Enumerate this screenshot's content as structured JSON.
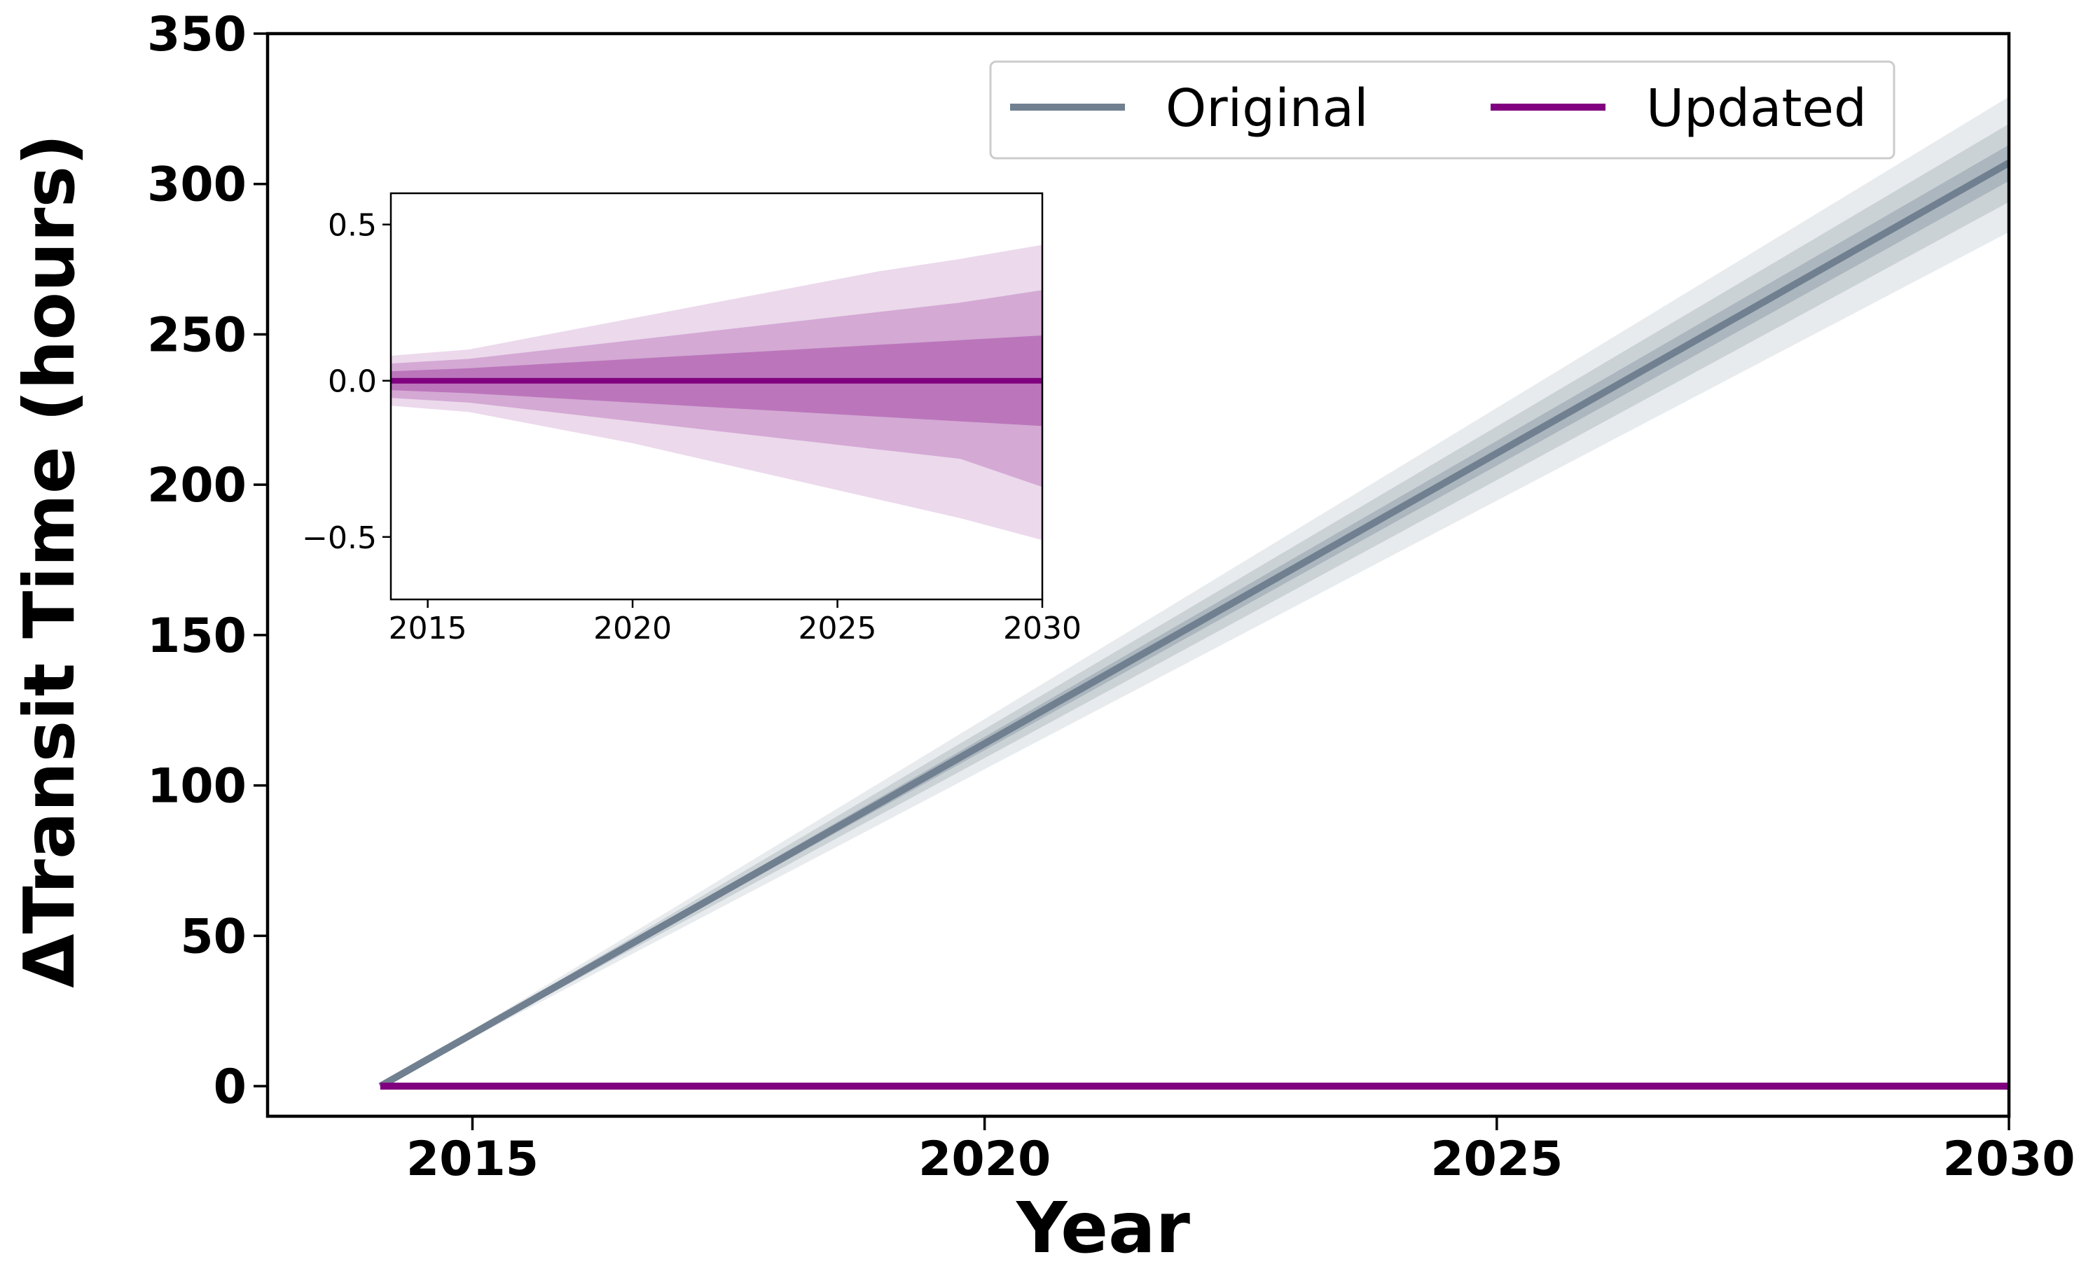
{
  "chart_data": [
    {
      "type": "line",
      "role": "main",
      "title": "",
      "xlabel": "Year",
      "ylabel": "ΔTransit Time (hours)",
      "xlim": [
        2013,
        2030
      ],
      "ylim": [
        -10,
        350
      ],
      "xticks": [
        2015,
        2020,
        2025,
        2030
      ],
      "xtick_labels": [
        "2015",
        "2020",
        "2025",
        "2030"
      ],
      "yticks": [
        0,
        50,
        100,
        150,
        200,
        250,
        300,
        350
      ],
      "ytick_labels": [
        "0",
        "50",
        "100",
        "150",
        "200",
        "250",
        "300",
        "350"
      ],
      "grid": false,
      "legend": {
        "placement": "upper-right",
        "ncol": 2
      },
      "series": [
        {
          "name": "Original",
          "color": "#708090",
          "x": [
            2014.1,
            2030
          ],
          "y": [
            0,
            307
          ],
          "bands": [
            {
              "level": 1,
              "upper": [
                0,
                313
              ],
              "lower": [
                0,
                301
              ]
            },
            {
              "level": 2,
              "upper": [
                0,
                320
              ],
              "lower": [
                0,
                294
              ]
            },
            {
              "level": 3,
              "upper": [
                0,
                329
              ],
              "lower": [
                0,
                284
              ]
            }
          ]
        },
        {
          "name": "Updated",
          "color": "#800080",
          "x": [
            2014.1,
            2030
          ],
          "y": [
            0,
            0
          ]
        }
      ]
    },
    {
      "type": "line",
      "role": "inset",
      "title": "",
      "xlabel": "",
      "ylabel": "",
      "xlim": [
        2014.1,
        2030
      ],
      "ylim": [
        -0.7,
        0.6
      ],
      "xticks": [
        2015,
        2020,
        2025,
        2030
      ],
      "xtick_labels": [
        "2015",
        "2020",
        "2025",
        "2030"
      ],
      "yticks": [
        0.5,
        0.0,
        -0.5
      ],
      "ytick_labels": [
        "0.5",
        "0.0",
        "−0.5"
      ],
      "grid": false,
      "series": [
        {
          "name": "Updated",
          "color": "#800080",
          "x": [
            2014.1,
            2016,
            2018,
            2020,
            2022,
            2024,
            2026,
            2028,
            2030
          ],
          "y": [
            0,
            0,
            0,
            0,
            0,
            0,
            0,
            0,
            0
          ],
          "bands": [
            {
              "level": 1,
              "upper": [
                0.03,
                0.04,
                0.055,
                0.07,
                0.085,
                0.1,
                0.115,
                0.13,
                0.145
              ],
              "lower": [
                -0.03,
                -0.04,
                -0.055,
                -0.07,
                -0.085,
                -0.1,
                -0.115,
                -0.13,
                -0.145
              ]
            },
            {
              "level": 2,
              "upper": [
                0.055,
                0.07,
                0.1,
                0.13,
                0.16,
                0.19,
                0.22,
                0.25,
                0.29
              ],
              "lower": [
                -0.055,
                -0.07,
                -0.1,
                -0.13,
                -0.16,
                -0.19,
                -0.22,
                -0.25,
                -0.34
              ]
            },
            {
              "level": 3,
              "upper": [
                0.08,
                0.1,
                0.15,
                0.2,
                0.25,
                0.3,
                0.35,
                0.39,
                0.435
              ],
              "lower": [
                -0.08,
                -0.1,
                -0.15,
                -0.2,
                -0.26,
                -0.32,
                -0.38,
                -0.44,
                -0.51
              ]
            }
          ]
        }
      ]
    }
  ]
}
